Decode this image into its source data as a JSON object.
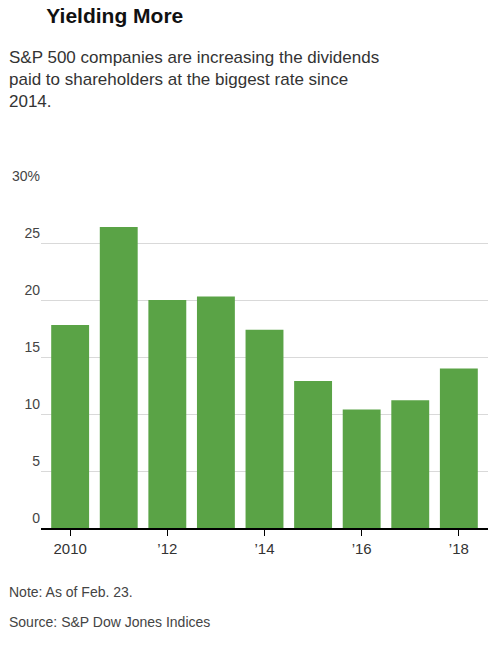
{
  "chart_data": {
    "type": "bar",
    "title": "Yielding More",
    "subtitle": "S&P 500 companies are increasing the dividends paid to shareholders at the biggest rate since 2014.",
    "categories": [
      "2010",
      null,
      "’12",
      null,
      "’14",
      null,
      "’16",
      null,
      "’18"
    ],
    "values": [
      17.8,
      26.4,
      20.0,
      20.3,
      17.4,
      12.9,
      10.4,
      11.2,
      14.0
    ],
    "color": "#5aa346",
    "ylim": [
      0,
      30
    ],
    "yticks": [
      0,
      5,
      10,
      15,
      20,
      25,
      {
        "value": 30,
        "label": "30%"
      }
    ],
    "grid": true,
    "note": "Note: As of Feb. 23.",
    "source": "Source: S&P Dow Jones Indices"
  }
}
